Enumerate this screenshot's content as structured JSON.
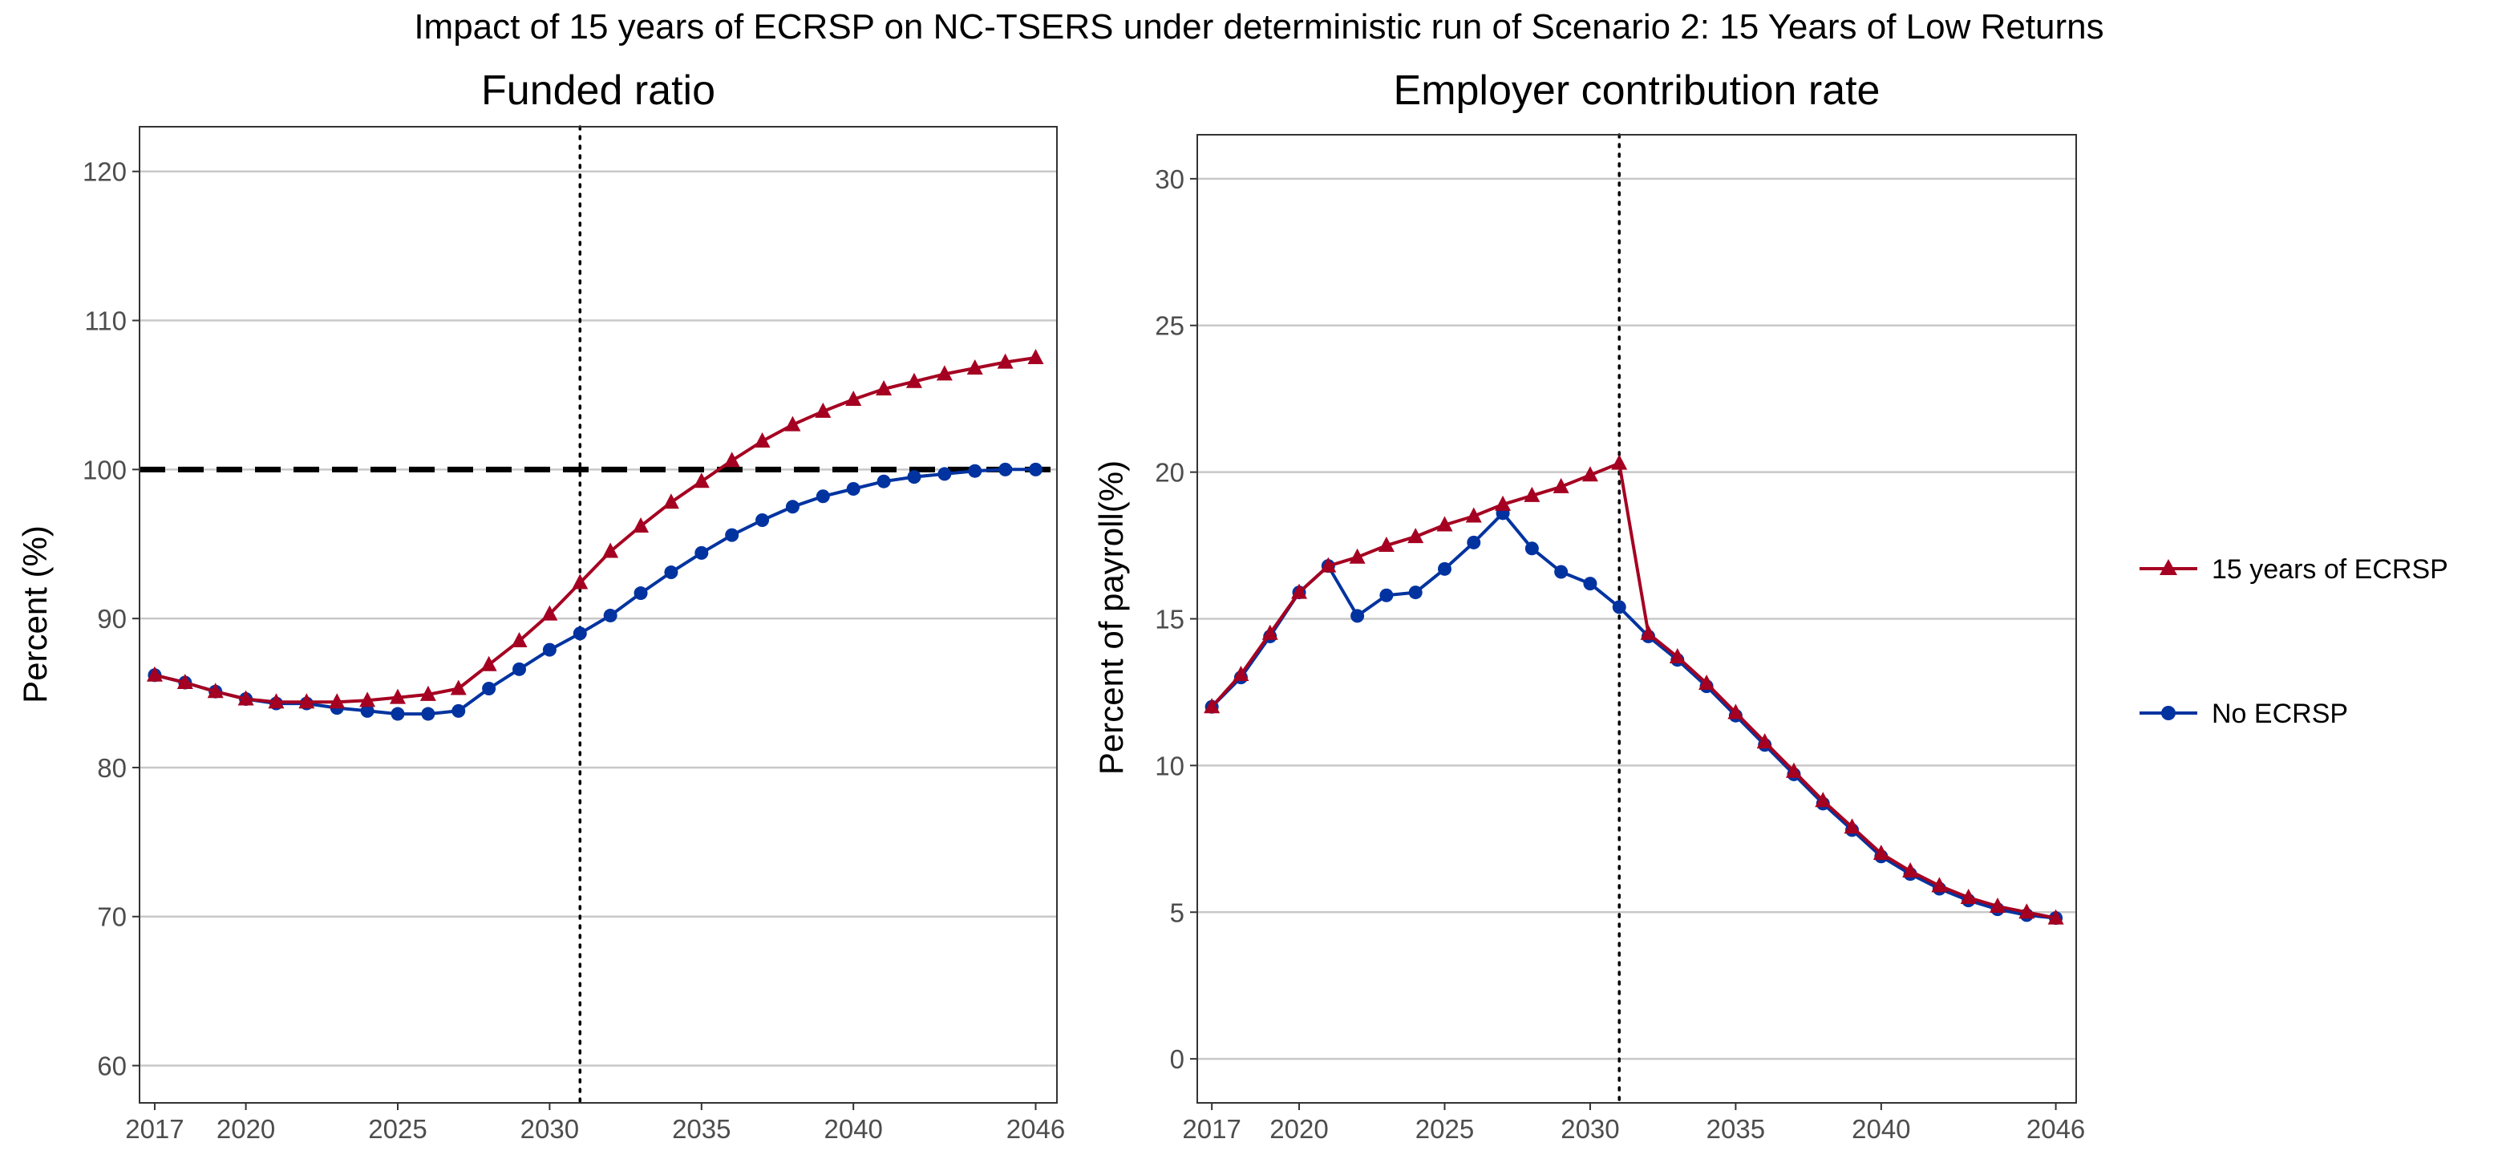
{
  "title": "Impact of 15 years of ECRSP on NC-TSERS under deterministic run of Scenario 2: 15 Years of Low Returns",
  "colors": {
    "ecrsp": "#A50021",
    "no_ecrsp": "#0033A0",
    "grid": "#c8c8c8",
    "ref_line": "#000000"
  },
  "legend": [
    {
      "label": "15 years of ECRSP",
      "color": "#A50021",
      "marker": "triangle"
    },
    {
      "label": "No ECRSP",
      "color": "#0033A0",
      "marker": "circle"
    }
  ],
  "chart_data": [
    {
      "type": "line",
      "title": "Funded ratio",
      "ylabel": "Percent (%)",
      "xlabel": "",
      "xlim": [
        2016.5,
        2046.7
      ],
      "ylim": [
        57.5,
        123
      ],
      "xticks": [
        2017,
        2020,
        2025,
        2030,
        2035,
        2040,
        2046
      ],
      "yticks": [
        60,
        70,
        80,
        90,
        100,
        110,
        120
      ],
      "vline": 2031,
      "hline": 100,
      "x": [
        2017,
        2018,
        2019,
        2020,
        2021,
        2022,
        2023,
        2024,
        2025,
        2026,
        2027,
        2028,
        2029,
        2030,
        2031,
        2032,
        2033,
        2034,
        2035,
        2036,
        2037,
        2038,
        2039,
        2040,
        2041,
        2042,
        2043,
        2044,
        2045,
        2046
      ],
      "series": [
        {
          "name": "15 years of ECRSP",
          "marker": "triangle",
          "values": [
            86.2,
            85.7,
            85.1,
            84.6,
            84.4,
            84.4,
            84.4,
            84.5,
            84.7,
            84.9,
            85.3,
            86.9,
            88.5,
            90.3,
            92.4,
            94.5,
            96.2,
            97.8,
            99.2,
            100.6,
            101.9,
            103.0,
            103.9,
            104.7,
            105.4,
            105.9,
            106.4,
            106.8,
            107.2,
            107.5
          ]
        },
        {
          "name": "No ECRSP",
          "marker": "circle",
          "values": [
            86.2,
            85.7,
            85.1,
            84.6,
            84.3,
            84.3,
            84.0,
            83.8,
            83.6,
            83.6,
            83.8,
            85.3,
            86.6,
            87.9,
            89.0,
            90.2,
            91.7,
            93.1,
            94.4,
            95.6,
            96.6,
            97.5,
            98.2,
            98.7,
            99.2,
            99.5,
            99.7,
            99.9,
            100.0,
            100.0
          ]
        }
      ]
    },
    {
      "type": "line",
      "title": "Employer contribution rate",
      "ylabel": "Percent of payroll(%)",
      "xlabel": "",
      "xlim": [
        2016.5,
        2046.7
      ],
      "ylim": [
        -1.5,
        31.5
      ],
      "xticks": [
        2017,
        2020,
        2025,
        2030,
        2035,
        2040,
        2046
      ],
      "yticks": [
        0,
        5,
        10,
        15,
        20,
        25,
        30
      ],
      "vline": 2031,
      "x": [
        2017,
        2018,
        2019,
        2020,
        2021,
        2022,
        2023,
        2024,
        2025,
        2026,
        2027,
        2028,
        2029,
        2030,
        2031,
        2032,
        2033,
        2034,
        2035,
        2036,
        2037,
        2038,
        2039,
        2040,
        2041,
        2042,
        2043,
        2044,
        2045,
        2046
      ],
      "series": [
        {
          "name": "15 years of ECRSP",
          "marker": "triangle",
          "values": [
            12.0,
            13.1,
            14.5,
            15.9,
            16.8,
            17.1,
            17.5,
            17.8,
            18.2,
            18.5,
            18.9,
            19.2,
            19.5,
            19.9,
            20.3,
            14.5,
            13.7,
            12.8,
            11.8,
            10.8,
            9.8,
            8.8,
            7.9,
            7.0,
            6.4,
            5.9,
            5.5,
            5.2,
            5.0,
            4.8
          ]
        },
        {
          "name": "No ECRSP",
          "marker": "circle",
          "values": [
            12.0,
            13.0,
            14.4,
            15.9,
            16.8,
            15.1,
            15.8,
            15.9,
            16.7,
            17.6,
            18.6,
            17.4,
            16.6,
            16.2,
            15.4,
            14.4,
            13.6,
            12.7,
            11.7,
            10.7,
            9.7,
            8.7,
            7.8,
            6.9,
            6.3,
            5.8,
            5.4,
            5.1,
            4.9,
            4.8
          ]
        }
      ]
    }
  ]
}
